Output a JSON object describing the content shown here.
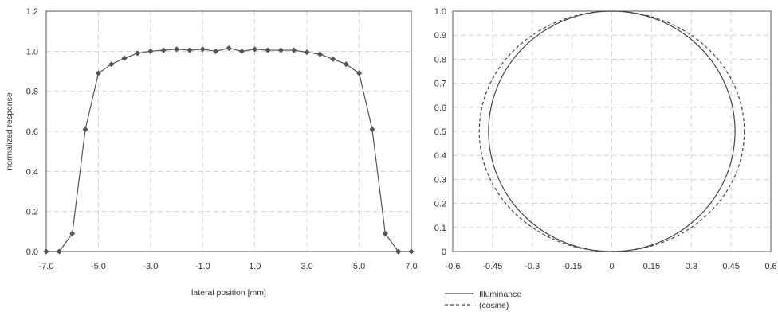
{
  "chart_data": [
    {
      "type": "line",
      "title": "",
      "xlabel": "lateral position [mm]",
      "ylabel": "normalized response",
      "xlim": [
        -7.0,
        7.0
      ],
      "ylim": [
        0.0,
        1.2
      ],
      "xticks": [
        "-7.0",
        "-5.0",
        "-3.0",
        "-1.0",
        "1.0",
        "3.0",
        "5.0",
        "7.0"
      ],
      "yticks": [
        "0.0",
        "0.2",
        "0.4",
        "0.6",
        "0.8",
        "1.0",
        "1.2"
      ],
      "grid": true,
      "colors": {
        "line": "#555555",
        "marker": "#555555"
      },
      "series": [
        {
          "marker": "diamond",
          "points": [
            [
              -7.0,
              0.0
            ],
            [
              -6.5,
              0.0
            ],
            [
              -6.0,
              0.09
            ],
            [
              -5.5,
              0.61
            ],
            [
              -5.0,
              0.89
            ],
            [
              -4.5,
              0.935
            ],
            [
              -4.0,
              0.965
            ],
            [
              -3.5,
              0.99
            ],
            [
              -3.0,
              1.0
            ],
            [
              -2.5,
              1.005
            ],
            [
              -2.0,
              1.01
            ],
            [
              -1.5,
              1.005
            ],
            [
              -1.0,
              1.01
            ],
            [
              -0.5,
              1.0
            ],
            [
              0.0,
              1.015
            ],
            [
              0.5,
              1.0
            ],
            [
              1.0,
              1.01
            ],
            [
              1.5,
              1.005
            ],
            [
              2.0,
              1.005
            ],
            [
              2.5,
              1.005
            ],
            [
              3.0,
              0.995
            ],
            [
              3.5,
              0.985
            ],
            [
              4.0,
              0.96
            ],
            [
              4.5,
              0.935
            ],
            [
              5.0,
              0.89
            ],
            [
              5.5,
              0.61
            ],
            [
              6.0,
              0.09
            ],
            [
              6.5,
              0.0
            ],
            [
              7.0,
              0.0
            ]
          ]
        }
      ]
    },
    {
      "type": "line",
      "title": "",
      "xlabel": "",
      "ylabel": "",
      "xlim": [
        -0.6,
        0.6
      ],
      "ylim": [
        0.0,
        1.0
      ],
      "xticks": [
        "-0.6",
        "-0.45",
        "-0.3",
        "-0.15",
        "0",
        "0.15",
        "0.3",
        "0.45",
        "0.6"
      ],
      "yticks": [
        "0",
        "0.1",
        "0.2",
        "0.3",
        "0.4",
        "0.5",
        "0.6",
        "0.7",
        "0.8",
        "0.9",
        "1.0"
      ],
      "grid": true,
      "legend": {
        "placement": "bottom-left"
      },
      "series": [
        {
          "name": "Illuminance",
          "style": "solid",
          "color": "#444444",
          "shape": "circle",
          "center": [
            0,
            0.5
          ],
          "rx": 0.465,
          "ry": 0.5
        },
        {
          "name": "(cosine)",
          "style": "dashed",
          "color": "#444444",
          "shape": "circle",
          "center": [
            0,
            0.5
          ],
          "rx": 0.5,
          "ry": 0.5
        }
      ]
    }
  ]
}
